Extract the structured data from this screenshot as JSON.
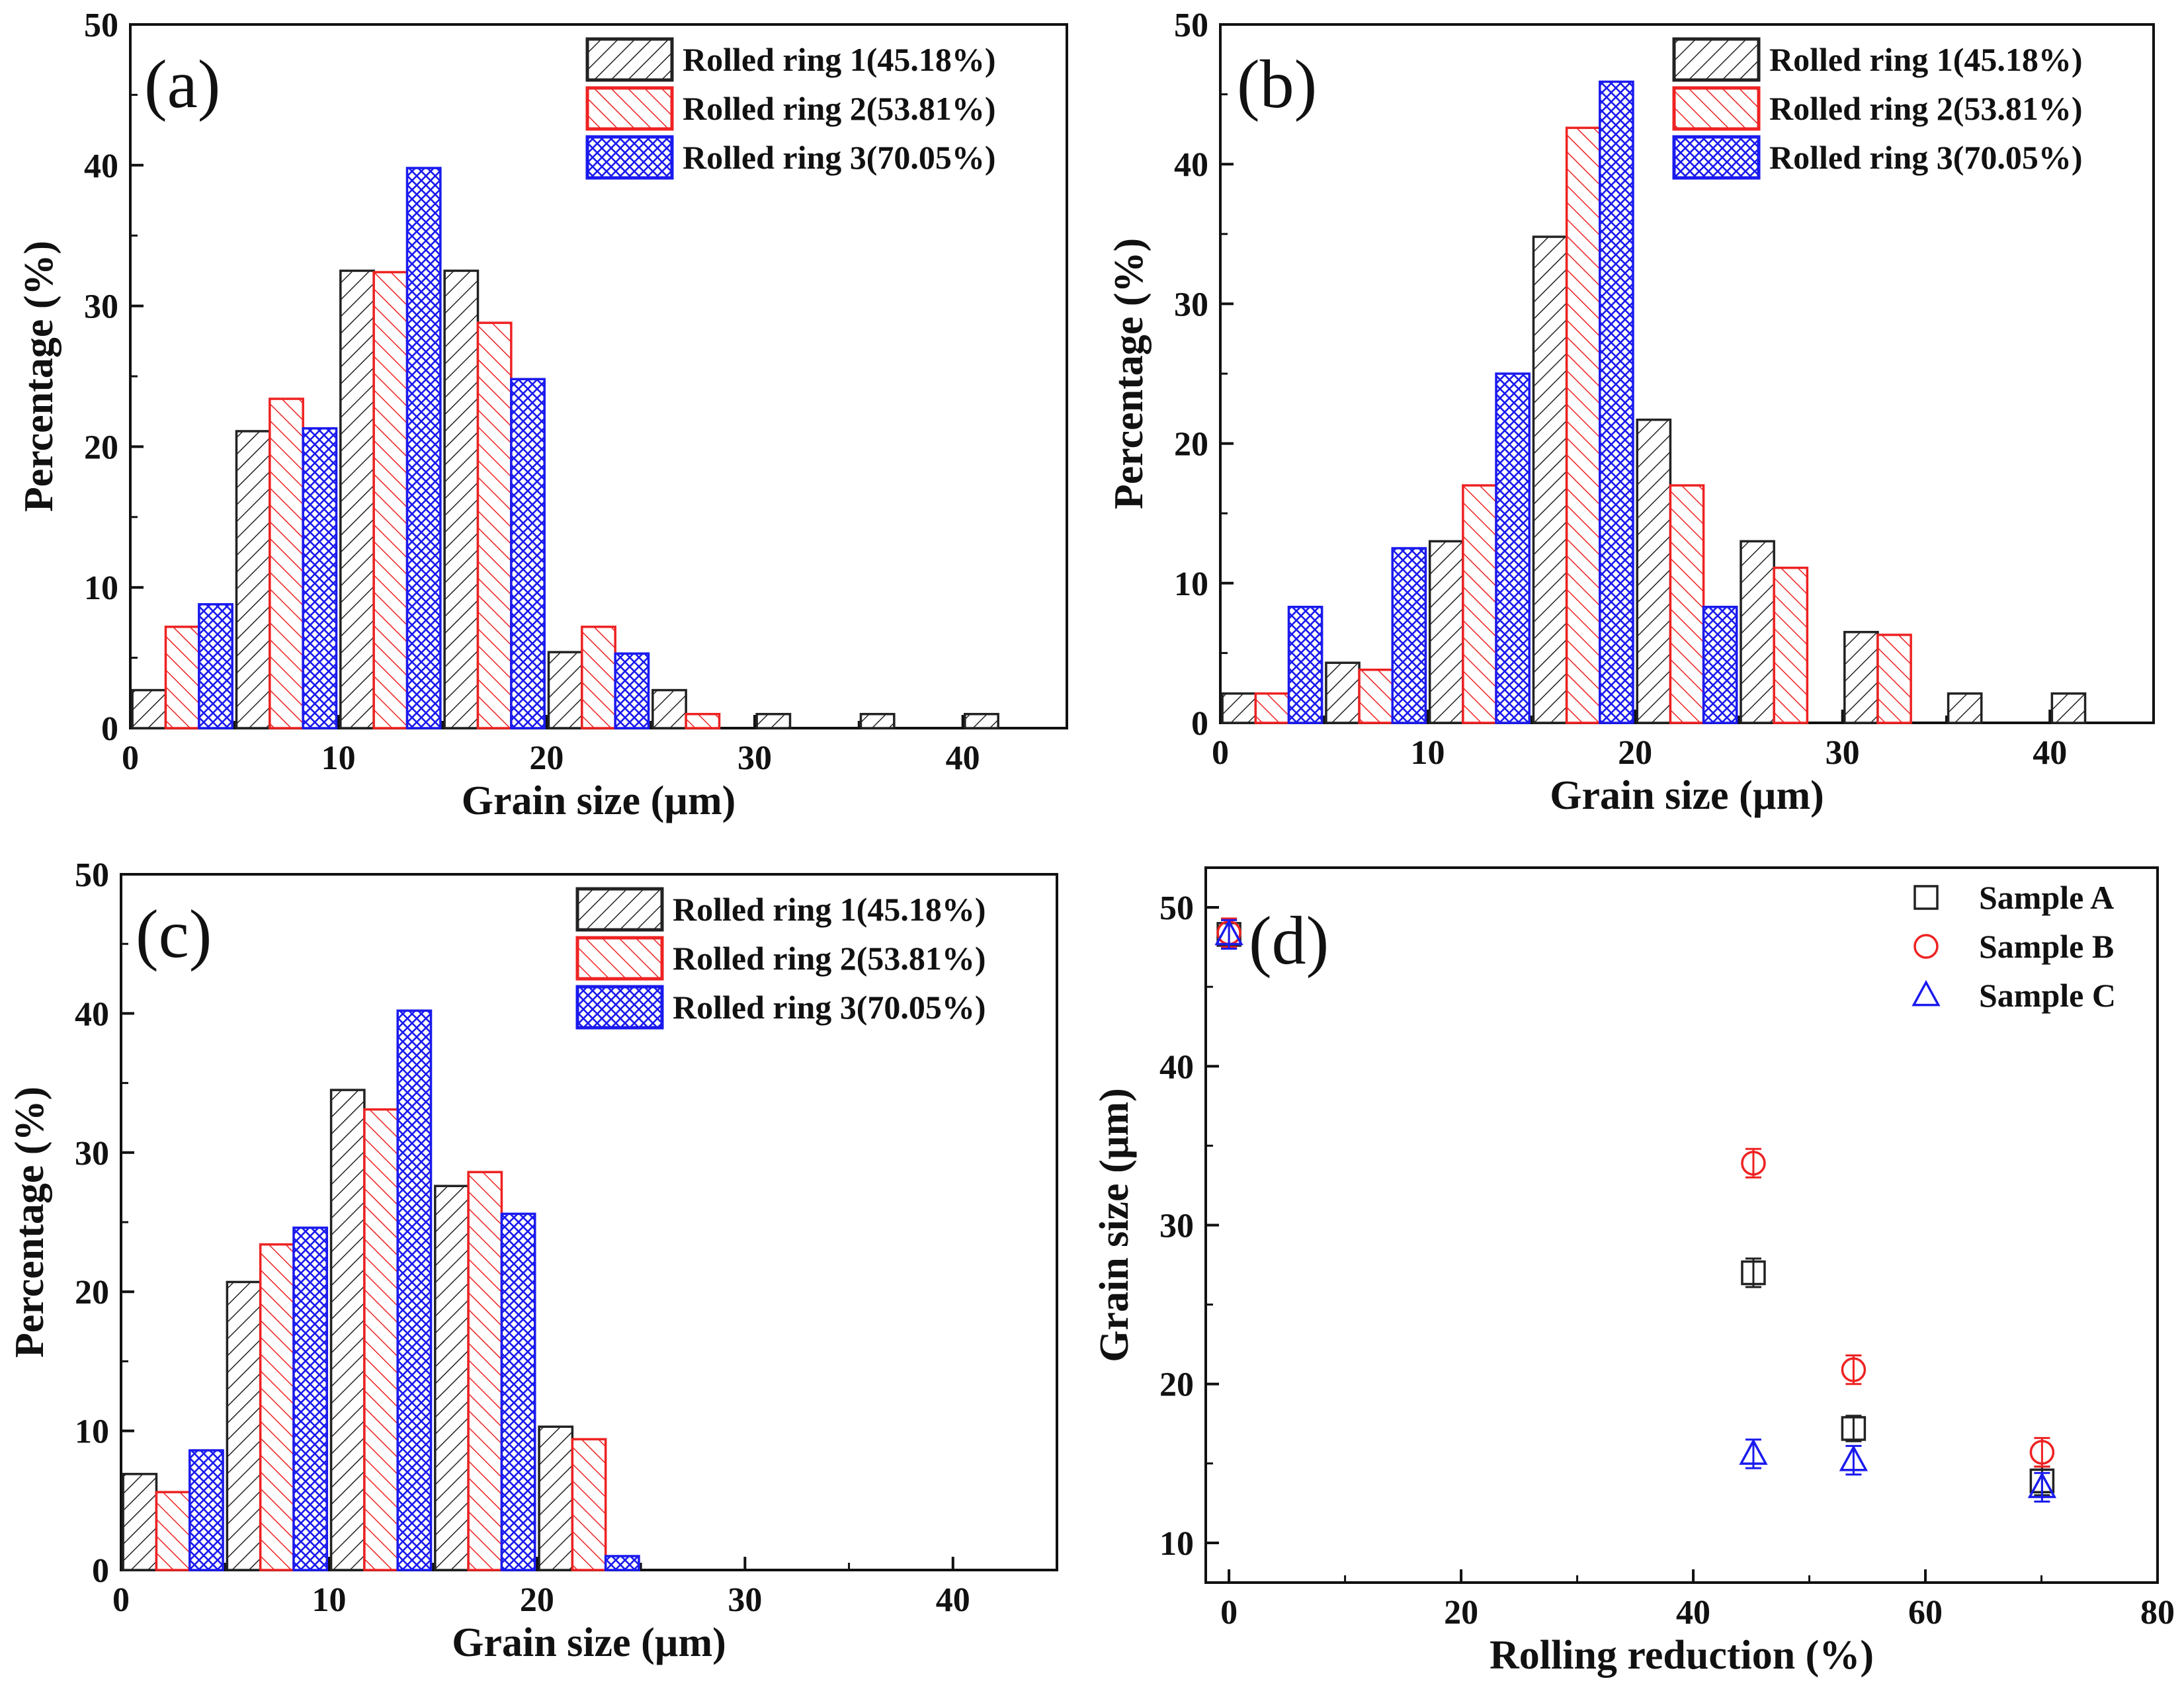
{
  "colors": {
    "ring1": "#222222",
    "ring2": "#ee2222",
    "ring3": "#1a1aee",
    "frame": "#111111"
  },
  "chart_data": [
    {
      "id": "a",
      "type": "bar",
      "panel_label": "(a)",
      "xlabel": "Grain size (µm)",
      "ylabel": "Percentage (%)",
      "xlim": [
        0,
        45
      ],
      "ylim": [
        0,
        50
      ],
      "x_ticks": [
        "0",
        "10",
        "20",
        "30",
        "40"
      ],
      "y_ticks": [
        "0",
        "10",
        "20",
        "30",
        "40",
        "50"
      ],
      "bin_centers": [
        2.5,
        7.5,
        12.5,
        17.5,
        22.5,
        27.5,
        32.5,
        37.5,
        42.5
      ],
      "legend_position": "top-right",
      "series": [
        {
          "name": "Rolled ring 1(45.18%)",
          "values": [
            2.7,
            21.1,
            32.5,
            32.5,
            5.4,
            2.7,
            1.0,
            1.0,
            1.0
          ]
        },
        {
          "name": "Rolled ring 2(53.81%)",
          "values": [
            7.2,
            23.4,
            32.4,
            28.8,
            7.2,
            1.0,
            0,
            0,
            0
          ]
        },
        {
          "name": "Rolled ring 3(70.05%)",
          "values": [
            8.8,
            21.3,
            39.8,
            24.8,
            5.3,
            0,
            0,
            0,
            0
          ]
        }
      ]
    },
    {
      "id": "b",
      "type": "bar",
      "panel_label": "(b)",
      "xlabel": "Grain size (µm)",
      "ylabel": "Percentage (%)",
      "xlim": [
        0,
        45
      ],
      "ylim": [
        0,
        50
      ],
      "x_ticks": [
        "0",
        "10",
        "20",
        "30",
        "40"
      ],
      "y_ticks": [
        "0",
        "10",
        "20",
        "30",
        "40",
        "50"
      ],
      "bin_centers": [
        2.5,
        7.5,
        12.5,
        17.5,
        22.5,
        27.5,
        32.5,
        37.5,
        42.5
      ],
      "legend_position": "top-right",
      "series": [
        {
          "name": "Rolled ring 1(45.18%)",
          "values": [
            2.1,
            4.3,
            13.0,
            34.8,
            21.7,
            13.0,
            6.5,
            2.1,
            2.1
          ]
        },
        {
          "name": "Rolled ring 2(53.81%)",
          "values": [
            2.1,
            3.8,
            17.0,
            42.6,
            17.0,
            11.1,
            6.3,
            0,
            0
          ]
        },
        {
          "name": "Rolled ring 3(70.05%)",
          "values": [
            8.3,
            12.5,
            25.0,
            45.9,
            8.3,
            0,
            0,
            0,
            0
          ]
        }
      ]
    },
    {
      "id": "c",
      "type": "bar",
      "panel_label": "(c)",
      "xlabel": "Grain size (µm)",
      "ylabel": "Percentage (%)",
      "xlim": [
        0,
        45
      ],
      "ylim": [
        0,
        50
      ],
      "x_ticks": [
        "0",
        "10",
        "20",
        "30",
        "40"
      ],
      "y_ticks": [
        "0",
        "10",
        "20",
        "30",
        "40",
        "50"
      ],
      "bin_centers": [
        2.5,
        7.5,
        12.5,
        17.5,
        22.5,
        27.5,
        32.5,
        37.5,
        42.5
      ],
      "legend_position": "top-right",
      "series": [
        {
          "name": "Rolled ring 1(45.18%)",
          "values": [
            6.9,
            20.7,
            34.5,
            27.6,
            10.3,
            0,
            0,
            0,
            0
          ]
        },
        {
          "name": "Rolled ring 2(53.81%)",
          "values": [
            5.6,
            23.4,
            33.1,
            28.6,
            9.4,
            0,
            0,
            0,
            0
          ]
        },
        {
          "name": "Rolled ring 3(70.05%)",
          "values": [
            8.6,
            24.6,
            40.2,
            25.6,
            1.0,
            0,
            0,
            0,
            0
          ]
        }
      ]
    },
    {
      "id": "d",
      "type": "scatter",
      "panel_label": "(d)",
      "xlabel": "Rolling reduction (%)",
      "ylabel": "Grain size (µm)",
      "xlim": [
        -2,
        80
      ],
      "ylim": [
        7.5,
        52.5
      ],
      "x_ticks": [
        "0",
        "20",
        "40",
        "60",
        "80"
      ],
      "y_ticks": [
        "10",
        "20",
        "30",
        "40",
        "50"
      ],
      "legend_position": "top-right",
      "series": [
        {
          "name": "Sample A",
          "marker": "square",
          "color": "#222222",
          "x": [
            0,
            45.18,
            53.81,
            70.05
          ],
          "y": [
            48.3,
            27.0,
            17.2,
            13.9
          ],
          "err": [
            0.9,
            0.9,
            0.8,
            0.9
          ]
        },
        {
          "name": "Sample B",
          "marker": "circle",
          "color": "#ee2222",
          "x": [
            0,
            45.18,
            53.81,
            70.05
          ],
          "y": [
            48.4,
            33.9,
            20.9,
            15.7
          ],
          "err": [
            0.9,
            0.9,
            0.9,
            0.9
          ]
        },
        {
          "name": "Sample C",
          "marker": "triangle",
          "color": "#1a1aee",
          "x": [
            0,
            45.18,
            53.81,
            70.05
          ],
          "y": [
            48.3,
            15.6,
            15.2,
            13.5
          ],
          "err": [
            0.9,
            0.9,
            0.9,
            0.9
          ]
        }
      ]
    }
  ]
}
